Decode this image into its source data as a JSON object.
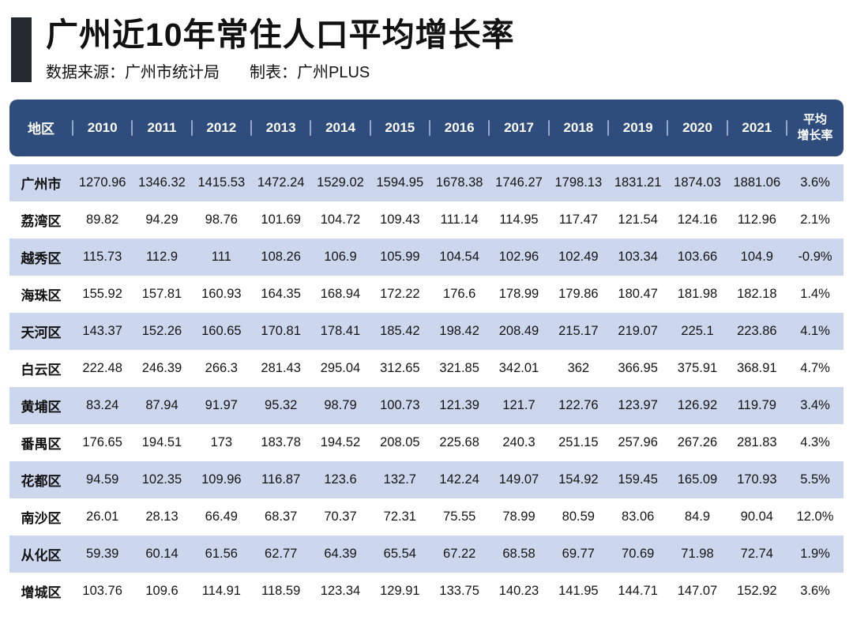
{
  "header": {
    "title": "广州近10年常住人口平均增长率",
    "source": "数据来源：广州市统计局",
    "maker": "制表：广州PLUS"
  },
  "table": {
    "avg_header_lines": [
      "平均",
      "增长率"
    ]
  },
  "colors": {
    "header_bg": "#2e4c7c",
    "row_alt_bg": "#ccd6ec",
    "row_bg": "#ffffff",
    "header_text": "#ffffff",
    "header_divider": "#93a7cd",
    "title_accent": "#23272e",
    "text": "#141414"
  },
  "chart_data": {
    "type": "table",
    "title": "广州近10年常住人口平均增长率",
    "columns": [
      "地区",
      "2010",
      "2011",
      "2012",
      "2013",
      "2014",
      "2015",
      "2016",
      "2017",
      "2018",
      "2019",
      "2020",
      "2021",
      "平均增长率"
    ],
    "rows": [
      [
        "广州市",
        "1270.96",
        "1346.32",
        "1415.53",
        "1472.24",
        "1529.02",
        "1594.95",
        "1678.38",
        "1746.27",
        "1798.13",
        "1831.21",
        "1874.03",
        "1881.06",
        "3.6%"
      ],
      [
        "荔湾区",
        "89.82",
        "94.29",
        "98.76",
        "101.69",
        "104.72",
        "109.43",
        "111.14",
        "114.95",
        "117.47",
        "121.54",
        "124.16",
        "112.96",
        "2.1%"
      ],
      [
        "越秀区",
        "115.73",
        "112.9",
        "111",
        "108.26",
        "106.9",
        "105.99",
        "104.54",
        "102.96",
        "102.49",
        "103.34",
        "103.66",
        "104.9",
        "-0.9%"
      ],
      [
        "海珠区",
        "155.92",
        "157.81",
        "160.93",
        "164.35",
        "168.94",
        "172.22",
        "176.6",
        "178.99",
        "179.86",
        "180.47",
        "181.98",
        "182.18",
        "1.4%"
      ],
      [
        "天河区",
        "143.37",
        "152.26",
        "160.65",
        "170.81",
        "178.41",
        "185.42",
        "198.42",
        "208.49",
        "215.17",
        "219.07",
        "225.1",
        "223.86",
        "4.1%"
      ],
      [
        "白云区",
        "222.48",
        "246.39",
        "266.3",
        "281.43",
        "295.04",
        "312.65",
        "321.85",
        "342.01",
        "362",
        "366.95",
        "375.91",
        "368.91",
        "4.7%"
      ],
      [
        "黄埔区",
        "83.24",
        "87.94",
        "91.97",
        "95.32",
        "98.79",
        "100.73",
        "121.39",
        "121.7",
        "122.76",
        "123.97",
        "126.92",
        "119.79",
        "3.4%"
      ],
      [
        "番禺区",
        "176.65",
        "194.51",
        "173",
        "183.78",
        "194.52",
        "208.05",
        "225.68",
        "240.3",
        "251.15",
        "257.96",
        "267.26",
        "281.83",
        "4.3%"
      ],
      [
        "花都区",
        "94.59",
        "102.35",
        "109.96",
        "116.87",
        "123.6",
        "132.7",
        "142.24",
        "149.07",
        "154.92",
        "159.45",
        "165.09",
        "170.93",
        "5.5%"
      ],
      [
        "南沙区",
        "26.01",
        "28.13",
        "66.49",
        "68.37",
        "70.37",
        "72.31",
        "75.55",
        "78.99",
        "80.59",
        "83.06",
        "84.9",
        "90.04",
        "12.0%"
      ],
      [
        "从化区",
        "59.39",
        "60.14",
        "61.56",
        "62.77",
        "64.39",
        "65.54",
        "67.22",
        "68.58",
        "69.77",
        "70.69",
        "71.98",
        "72.74",
        "1.9%"
      ],
      [
        "增城区",
        "103.76",
        "109.6",
        "114.91",
        "118.59",
        "123.34",
        "129.91",
        "133.75",
        "140.23",
        "141.95",
        "144.71",
        "147.07",
        "152.92",
        "3.6%"
      ]
    ],
    "notes": "values are resident population in 10k persons (万人) per district per year; last column is average annual growth rate"
  }
}
